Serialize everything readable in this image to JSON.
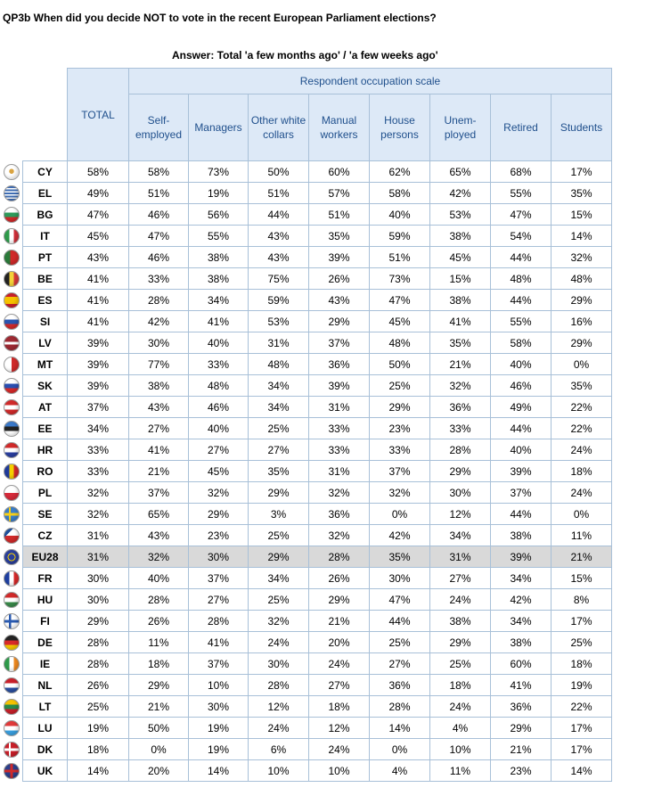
{
  "title": "QP3b When did you decide NOT to vote in the recent European Parliament elections?",
  "subtitle": "Answer: Total 'a few months ago' / 'a few weeks ago'",
  "header": {
    "total_label": "TOTAL",
    "scale_label": "Respondent occupation scale",
    "columns": [
      "Self-\nemployed",
      "Managers",
      "Other white\ncollars",
      "Manual\nworkers",
      "House\npersons",
      "Unem-\nployed",
      "Retired",
      "Students"
    ]
  },
  "rows": [
    {
      "code": "CY",
      "flag": "cy-flag-icon",
      "values": [
        "58%",
        "58%",
        "73%",
        "50%",
        "60%",
        "62%",
        "65%",
        "68%",
        "17%"
      ]
    },
    {
      "code": "EL",
      "flag": "el-flag-icon",
      "values": [
        "49%",
        "51%",
        "19%",
        "51%",
        "57%",
        "58%",
        "42%",
        "55%",
        "35%"
      ]
    },
    {
      "code": "BG",
      "flag": "bg-flag-icon",
      "values": [
        "47%",
        "46%",
        "56%",
        "44%",
        "51%",
        "40%",
        "53%",
        "47%",
        "15%"
      ]
    },
    {
      "code": "IT",
      "flag": "it-flag-icon",
      "values": [
        "45%",
        "47%",
        "55%",
        "43%",
        "35%",
        "59%",
        "38%",
        "54%",
        "14%"
      ]
    },
    {
      "code": "PT",
      "flag": "pt-flag-icon",
      "values": [
        "43%",
        "46%",
        "38%",
        "43%",
        "39%",
        "51%",
        "45%",
        "44%",
        "32%"
      ]
    },
    {
      "code": "BE",
      "flag": "be-flag-icon",
      "values": [
        "41%",
        "33%",
        "38%",
        "75%",
        "26%",
        "73%",
        "15%",
        "48%",
        "48%"
      ]
    },
    {
      "code": "ES",
      "flag": "es-flag-icon",
      "values": [
        "41%",
        "28%",
        "34%",
        "59%",
        "43%",
        "47%",
        "38%",
        "44%",
        "29%"
      ]
    },
    {
      "code": "SI",
      "flag": "si-flag-icon",
      "values": [
        "41%",
        "42%",
        "41%",
        "53%",
        "29%",
        "45%",
        "41%",
        "55%",
        "16%"
      ]
    },
    {
      "code": "LV",
      "flag": "lv-flag-icon",
      "values": [
        "39%",
        "30%",
        "40%",
        "31%",
        "37%",
        "48%",
        "35%",
        "58%",
        "29%"
      ]
    },
    {
      "code": "MT",
      "flag": "mt-flag-icon",
      "values": [
        "39%",
        "77%",
        "33%",
        "48%",
        "36%",
        "50%",
        "21%",
        "40%",
        "0%"
      ]
    },
    {
      "code": "SK",
      "flag": "sk-flag-icon",
      "values": [
        "39%",
        "38%",
        "48%",
        "34%",
        "39%",
        "25%",
        "32%",
        "46%",
        "35%"
      ]
    },
    {
      "code": "AT",
      "flag": "at-flag-icon",
      "values": [
        "37%",
        "43%",
        "46%",
        "34%",
        "31%",
        "29%",
        "36%",
        "49%",
        "22%"
      ]
    },
    {
      "code": "EE",
      "flag": "ee-flag-icon",
      "values": [
        "34%",
        "27%",
        "40%",
        "25%",
        "33%",
        "23%",
        "33%",
        "44%",
        "22%"
      ]
    },
    {
      "code": "HR",
      "flag": "hr-flag-icon",
      "values": [
        "33%",
        "41%",
        "27%",
        "27%",
        "33%",
        "33%",
        "28%",
        "40%",
        "24%"
      ]
    },
    {
      "code": "RO",
      "flag": "ro-flag-icon",
      "values": [
        "33%",
        "21%",
        "45%",
        "35%",
        "31%",
        "37%",
        "29%",
        "39%",
        "18%"
      ]
    },
    {
      "code": "PL",
      "flag": "pl-flag-icon",
      "values": [
        "32%",
        "37%",
        "32%",
        "29%",
        "32%",
        "32%",
        "30%",
        "37%",
        "24%"
      ]
    },
    {
      "code": "SE",
      "flag": "se-flag-icon",
      "values": [
        "32%",
        "65%",
        "29%",
        "3%",
        "36%",
        "0%",
        "12%",
        "44%",
        "0%"
      ]
    },
    {
      "code": "CZ",
      "flag": "cz-flag-icon",
      "values": [
        "31%",
        "43%",
        "23%",
        "25%",
        "32%",
        "42%",
        "34%",
        "38%",
        "11%"
      ]
    },
    {
      "code": "EU28",
      "flag": "eu-flag-icon",
      "values": [
        "31%",
        "32%",
        "30%",
        "29%",
        "28%",
        "35%",
        "31%",
        "39%",
        "21%"
      ]
    },
    {
      "code": "FR",
      "flag": "fr-flag-icon",
      "values": [
        "30%",
        "40%",
        "37%",
        "34%",
        "26%",
        "30%",
        "27%",
        "34%",
        "15%"
      ]
    },
    {
      "code": "HU",
      "flag": "hu-flag-icon",
      "values": [
        "30%",
        "28%",
        "27%",
        "25%",
        "29%",
        "47%",
        "24%",
        "42%",
        "8%"
      ]
    },
    {
      "code": "FI",
      "flag": "fi-flag-icon",
      "values": [
        "29%",
        "26%",
        "28%",
        "32%",
        "21%",
        "44%",
        "38%",
        "34%",
        "17%"
      ]
    },
    {
      "code": "DE",
      "flag": "de-flag-icon",
      "values": [
        "28%",
        "11%",
        "41%",
        "24%",
        "20%",
        "25%",
        "29%",
        "38%",
        "25%"
      ]
    },
    {
      "code": "IE",
      "flag": "ie-flag-icon",
      "values": [
        "28%",
        "18%",
        "37%",
        "30%",
        "24%",
        "27%",
        "25%",
        "60%",
        "18%"
      ]
    },
    {
      "code": "NL",
      "flag": "nl-flag-icon",
      "values": [
        "26%",
        "29%",
        "10%",
        "28%",
        "27%",
        "36%",
        "18%",
        "41%",
        "19%"
      ]
    },
    {
      "code": "LT",
      "flag": "lt-flag-icon",
      "values": [
        "25%",
        "21%",
        "30%",
        "12%",
        "18%",
        "28%",
        "24%",
        "36%",
        "22%"
      ]
    },
    {
      "code": "LU",
      "flag": "lu-flag-icon",
      "values": [
        "19%",
        "50%",
        "19%",
        "24%",
        "12%",
        "14%",
        "4%",
        "29%",
        "17%"
      ]
    },
    {
      "code": "DK",
      "flag": "dk-flag-icon",
      "values": [
        "18%",
        "0%",
        "19%",
        "6%",
        "24%",
        "0%",
        "10%",
        "21%",
        "17%"
      ]
    },
    {
      "code": "UK",
      "flag": "uk-flag-icon",
      "values": [
        "14%",
        "20%",
        "14%",
        "10%",
        "10%",
        "4%",
        "11%",
        "23%",
        "14%"
      ]
    }
  ],
  "colors": {
    "header_bg": "#dde9f7",
    "header_text": "#1f4f8c",
    "border": "#a8c0d8",
    "eu_row_bg": "#d9d9d9"
  }
}
